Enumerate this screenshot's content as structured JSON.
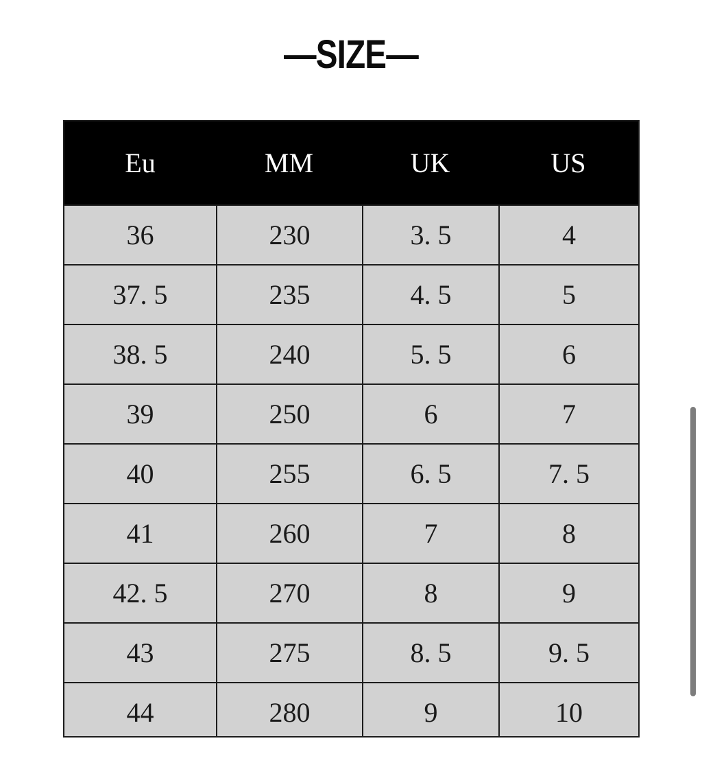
{
  "title": "—SIZE—",
  "size_table": {
    "columns": [
      "Eu",
      "MM",
      "UK",
      "US"
    ],
    "rows": [
      [
        "36",
        "230",
        "3. 5",
        "4"
      ],
      [
        "37. 5",
        "235",
        "4. 5",
        "5"
      ],
      [
        "38. 5",
        "240",
        "5. 5",
        "6"
      ],
      [
        "39",
        "250",
        "6",
        "7"
      ],
      [
        "40",
        "255",
        "6. 5",
        "7. 5"
      ],
      [
        "41",
        "260",
        "7",
        "8"
      ],
      [
        "42. 5",
        "270",
        "8",
        "9"
      ],
      [
        "43",
        "275",
        "8. 5",
        "9. 5"
      ],
      [
        "44",
        "280",
        "9",
        "10"
      ]
    ],
    "colors": {
      "header_bg": "#000000",
      "header_text": "#ffffff",
      "row_bg": "#d2d2d2",
      "border": "#1c1c1c",
      "cell_text": "#1a1a1a"
    }
  },
  "scrollbar": {
    "thumb_color": "#7d7d7d"
  }
}
